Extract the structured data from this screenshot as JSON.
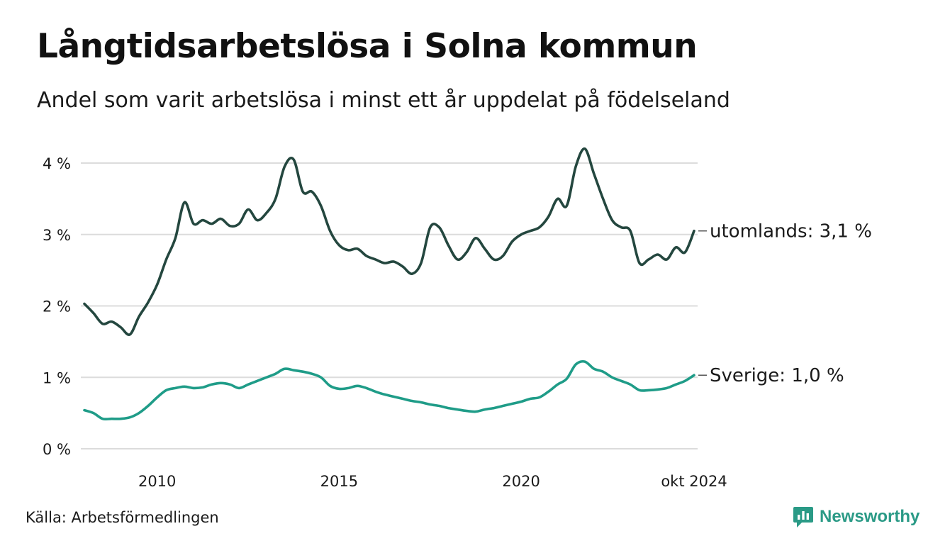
{
  "title": "Långtidsarbetslösa i Solna kommun",
  "subtitle": "Andel som varit arbetslösa i minst ett år uppdelat på födelseland",
  "source": "Källa: Arbetsförmedlingen",
  "brand": {
    "name": "Newsworthy",
    "icon": "newsworthy-logo-icon"
  },
  "colors": {
    "utomlands": "#24473f",
    "sverige": "#1f9c88",
    "grid": "#dcdcdc",
    "brand": "#2a9a86"
  },
  "chart_data": {
    "type": "line",
    "title": "Långtidsarbetslösa i Solna kommun",
    "xlabel": "",
    "ylabel": "",
    "ylim": [
      0,
      4.2
    ],
    "xlim": [
      2008.0,
      2024.75
    ],
    "y_ticks": [
      {
        "value": 0,
        "label": "0 %"
      },
      {
        "value": 1,
        "label": "1 %"
      },
      {
        "value": 2,
        "label": "2 %"
      },
      {
        "value": 3,
        "label": "3 %"
      },
      {
        "value": 4,
        "label": "4 %"
      }
    ],
    "x_ticks": [
      {
        "value": 2010,
        "label": "2010"
      },
      {
        "value": 2015,
        "label": "2015"
      },
      {
        "value": 2020,
        "label": "2020"
      },
      {
        "value": 2024.75,
        "label": "okt 2024"
      }
    ],
    "grid": true,
    "series": [
      {
        "name": "utomlands",
        "end_label": "utomlands: 3,1 %",
        "x": [
          2008.0,
          2008.25,
          2008.5,
          2008.75,
          2009.0,
          2009.25,
          2009.5,
          2009.75,
          2010.0,
          2010.25,
          2010.5,
          2010.75,
          2011.0,
          2011.25,
          2011.5,
          2011.75,
          2012.0,
          2012.25,
          2012.5,
          2012.75,
          2013.0,
          2013.25,
          2013.5,
          2013.75,
          2014.0,
          2014.25,
          2014.5,
          2014.75,
          2015.0,
          2015.25,
          2015.5,
          2015.75,
          2016.0,
          2016.25,
          2016.5,
          2016.75,
          2017.0,
          2017.25,
          2017.5,
          2017.75,
          2018.0,
          2018.25,
          2018.5,
          2018.75,
          2019.0,
          2019.25,
          2019.5,
          2019.75,
          2020.0,
          2020.25,
          2020.5,
          2020.75,
          2021.0,
          2021.25,
          2021.5,
          2021.75,
          2022.0,
          2022.25,
          2022.5,
          2022.75,
          2023.0,
          2023.25,
          2023.5,
          2023.75,
          2024.0,
          2024.25,
          2024.5,
          2024.75
        ],
        "values": [
          2.03,
          1.9,
          1.75,
          1.78,
          1.7,
          1.6,
          1.85,
          2.05,
          2.3,
          2.65,
          2.95,
          3.45,
          3.15,
          3.2,
          3.15,
          3.22,
          3.12,
          3.15,
          3.35,
          3.2,
          3.3,
          3.5,
          3.95,
          4.05,
          3.6,
          3.6,
          3.4,
          3.05,
          2.85,
          2.78,
          2.8,
          2.7,
          2.65,
          2.6,
          2.62,
          2.55,
          2.45,
          2.6,
          3.1,
          3.1,
          2.85,
          2.65,
          2.75,
          2.95,
          2.8,
          2.65,
          2.7,
          2.9,
          3.0,
          3.05,
          3.1,
          3.25,
          3.5,
          3.4,
          3.95,
          4.2,
          3.85,
          3.5,
          3.2,
          3.1,
          3.05,
          2.6,
          2.65,
          2.72,
          2.65,
          2.82,
          2.75,
          3.05
        ]
      },
      {
        "name": "Sverige",
        "end_label": "Sverige: 1,0 %",
        "x": [
          2008.0,
          2008.25,
          2008.5,
          2008.75,
          2009.0,
          2009.25,
          2009.5,
          2009.75,
          2010.0,
          2010.25,
          2010.5,
          2010.75,
          2011.0,
          2011.25,
          2011.5,
          2011.75,
          2012.0,
          2012.25,
          2012.5,
          2012.75,
          2013.0,
          2013.25,
          2013.5,
          2013.75,
          2014.0,
          2014.25,
          2014.5,
          2014.75,
          2015.0,
          2015.25,
          2015.5,
          2015.75,
          2016.0,
          2016.25,
          2016.5,
          2016.75,
          2017.0,
          2017.25,
          2017.5,
          2017.75,
          2018.0,
          2018.25,
          2018.5,
          2018.75,
          2019.0,
          2019.25,
          2019.5,
          2019.75,
          2020.0,
          2020.25,
          2020.5,
          2020.75,
          2021.0,
          2021.25,
          2021.5,
          2021.75,
          2022.0,
          2022.25,
          2022.5,
          2022.75,
          2023.0,
          2023.25,
          2023.5,
          2023.75,
          2024.0,
          2024.25,
          2024.5,
          2024.75
        ],
        "values": [
          0.54,
          0.5,
          0.42,
          0.42,
          0.42,
          0.44,
          0.5,
          0.6,
          0.72,
          0.82,
          0.85,
          0.87,
          0.85,
          0.86,
          0.9,
          0.92,
          0.9,
          0.85,
          0.9,
          0.95,
          1.0,
          1.05,
          1.12,
          1.1,
          1.08,
          1.05,
          1.0,
          0.88,
          0.84,
          0.85,
          0.88,
          0.85,
          0.8,
          0.76,
          0.73,
          0.7,
          0.67,
          0.65,
          0.62,
          0.6,
          0.57,
          0.55,
          0.53,
          0.52,
          0.55,
          0.57,
          0.6,
          0.63,
          0.66,
          0.7,
          0.72,
          0.8,
          0.9,
          0.98,
          1.18,
          1.22,
          1.12,
          1.08,
          1.0,
          0.95,
          0.9,
          0.82,
          0.82,
          0.83,
          0.85,
          0.9,
          0.95,
          1.03
        ]
      }
    ]
  }
}
